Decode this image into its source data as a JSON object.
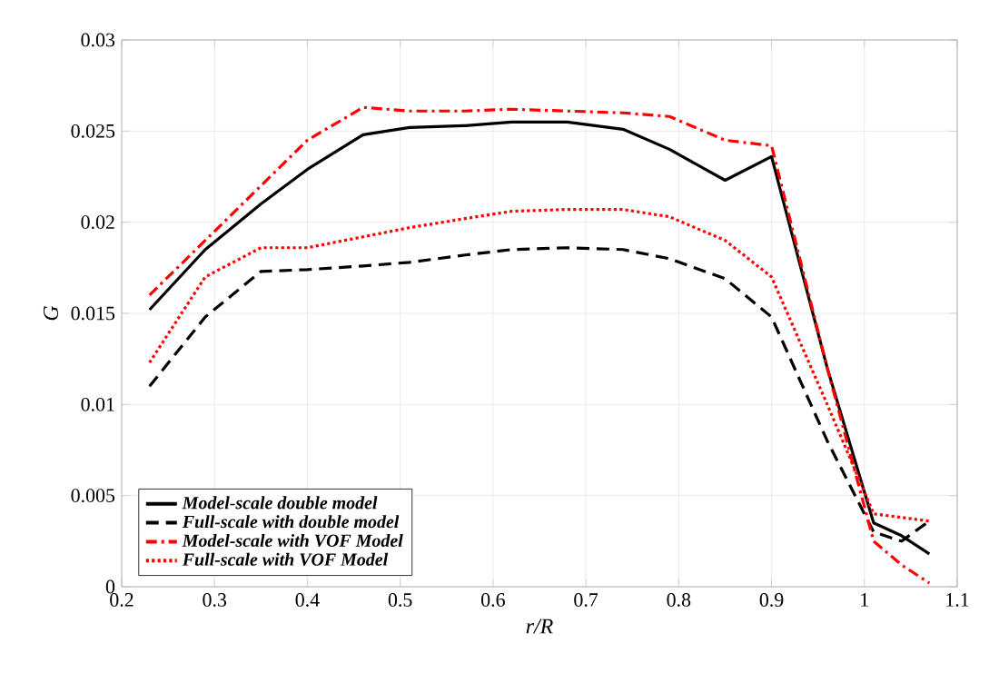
{
  "chart_data": {
    "type": "line",
    "xlabel": "r/R",
    "ylabel": "G",
    "xlim": [
      0.2,
      1.1
    ],
    "xticks": [
      0.2,
      0.3,
      0.4,
      0.5,
      0.6,
      0.7,
      0.8,
      0.9,
      1,
      1.1
    ],
    "ylim": [
      0,
      0.03
    ],
    "yticks": [
      0,
      0.005,
      0.01,
      0.015,
      0.02,
      0.025,
      0.03
    ],
    "grid": true,
    "legend": "bottom left",
    "x": [
      0.23,
      0.29,
      0.35,
      0.4,
      0.46,
      0.51,
      0.57,
      0.62,
      0.68,
      0.74,
      0.79,
      0.85,
      0.9,
      0.96,
      1.01,
      1.04,
      1.07
    ],
    "series": [
      {
        "name": "Model-scale double model",
        "color": "#000000",
        "line_style": "solid",
        "values": [
          0.0152,
          0.0185,
          0.021,
          0.0229,
          0.0248,
          0.0252,
          0.0253,
          0.0255,
          0.0255,
          0.0251,
          0.024,
          0.0223,
          0.0236,
          0.012,
          0.0035,
          0.0028,
          0.0018
        ]
      },
      {
        "name": "Full-scale with double model",
        "color": "#000000",
        "line_style": "dashed",
        "values": [
          0.011,
          0.0148,
          0.0173,
          0.0174,
          0.0176,
          0.0178,
          0.0182,
          0.0185,
          0.0186,
          0.0185,
          0.018,
          0.0169,
          0.0148,
          0.008,
          0.003,
          0.0025,
          0.0036
        ]
      },
      {
        "name": "Model-scale with VOF Model",
        "color": "#ff0000",
        "line_style": "dashdot",
        "values": [
          0.016,
          0.019,
          0.022,
          0.0245,
          0.0263,
          0.0261,
          0.0261,
          0.0262,
          0.0261,
          0.026,
          0.0258,
          0.0245,
          0.0242,
          0.012,
          0.0025,
          0.0012,
          0.0002
        ]
      },
      {
        "name": "Full-scale with VOF Model",
        "color": "#ff0000",
        "line_style": "dotted",
        "values": [
          0.0123,
          0.017,
          0.0186,
          0.0186,
          0.0192,
          0.0197,
          0.0202,
          0.0206,
          0.0207,
          0.0207,
          0.0203,
          0.019,
          0.017,
          0.01,
          0.004,
          0.0038,
          0.0036
        ]
      }
    ]
  }
}
